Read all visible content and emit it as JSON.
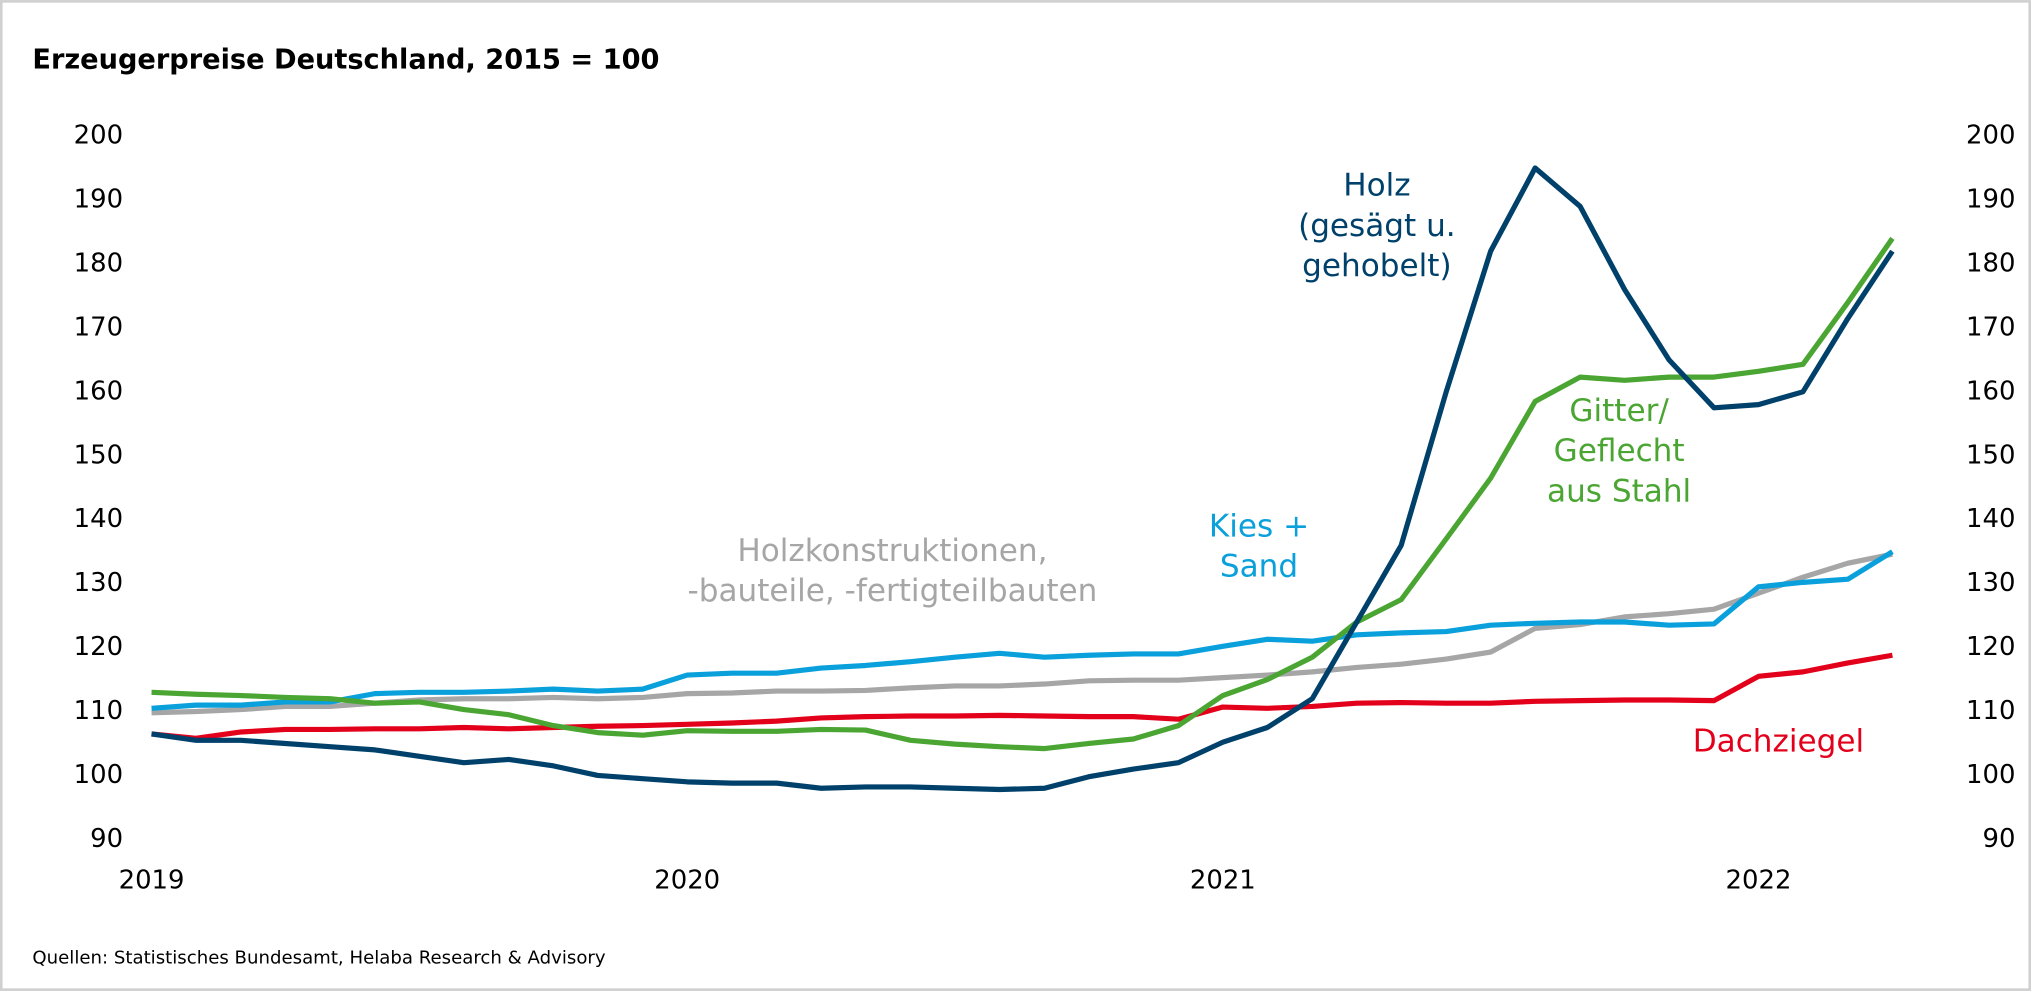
{
  "chart_data": {
    "type": "line",
    "title": "Erzeugerpreise Deutschland, 2015 = 100",
    "source": "Quellen: Statistisches Bundesamt, Helaba Research & Advisory",
    "x": [
      2019,
      2019.083,
      2019.167,
      2019.25,
      2019.333,
      2019.417,
      2019.5,
      2019.583,
      2019.667,
      2019.75,
      2019.833,
      2019.917,
      2020,
      2020.083,
      2020.167,
      2020.25,
      2020.333,
      2020.417,
      2020.5,
      2020.583,
      2020.667,
      2020.75,
      2020.833,
      2020.917,
      2021,
      2021.083,
      2021.167,
      2021.25,
      2021.333,
      2021.417,
      2021.5,
      2021.583,
      2021.667,
      2021.75,
      2021.833,
      2021.917,
      2022,
      2022.083,
      2022.167,
      2022.25
    ],
    "xlim": [
      2019,
      2022.25
    ],
    "xticks": [
      2019,
      2020,
      2021,
      2022
    ],
    "ylim": [
      90,
      200
    ],
    "yticks": [
      90,
      100,
      110,
      120,
      130,
      140,
      150,
      160,
      170,
      180,
      190,
      200
    ],
    "y2lim": [
      90,
      200
    ],
    "y2ticks": [
      90,
      100,
      110,
      120,
      130,
      140,
      150,
      160,
      170,
      180,
      190,
      200
    ],
    "grid": false,
    "series": [
      {
        "name": "Holzkonstruktionen,\n-bauteile, -fertigteilbauten",
        "color": "#a6a6a6",
        "values": [
          109.8,
          110,
          110.3,
          110.8,
          110.8,
          111.3,
          111.8,
          112,
          112,
          112.2,
          112,
          112.2,
          112.8,
          112.9,
          113.2,
          113.2,
          113.3,
          113.7,
          114,
          114,
          114.3,
          114.8,
          114.9,
          114.9,
          115.3,
          115.7,
          116.2,
          116.9,
          117.4,
          118.2,
          119.3,
          123,
          123.6,
          124.8,
          125.3,
          126,
          128.5,
          131,
          133.2,
          134.6
        ]
      },
      {
        "name": "Dachziegel",
        "color": "#e3001b",
        "values": [
          106.5,
          105.8,
          106.8,
          107.2,
          107.2,
          107.3,
          107.3,
          107.5,
          107.3,
          107.5,
          107.7,
          107.8,
          108,
          108.2,
          108.5,
          109,
          109.2,
          109.3,
          109.3,
          109.4,
          109.3,
          109.2,
          109.2,
          108.8,
          110.7,
          110.5,
          110.8,
          111.3,
          111.4,
          111.3,
          111.3,
          111.6,
          111.7,
          111.8,
          111.8,
          111.7,
          115.5,
          116.2,
          117.6,
          118.8
        ]
      },
      {
        "name": "Kies +\nSand",
        "color": "#0aa0dc",
        "values": [
          110.5,
          111,
          111,
          111.5,
          111.5,
          112.8,
          113,
          113,
          113.2,
          113.5,
          113.2,
          113.5,
          115.7,
          116,
          116,
          116.8,
          117.2,
          117.8,
          118.5,
          119.1,
          118.5,
          118.8,
          119,
          119,
          120.2,
          121.3,
          121,
          122,
          122.3,
          122.5,
          123.5,
          123.8,
          124,
          124,
          123.5,
          123.7,
          129.5,
          130.2,
          130.7,
          135
        ]
      },
      {
        "name": "Gitter/\nGeflecht\naus Stahl",
        "color": "#4aa532",
        "values": [
          113,
          112.7,
          112.5,
          112.2,
          112,
          111.3,
          111.5,
          110.3,
          109.5,
          107.8,
          106.7,
          106.3,
          107,
          106.9,
          106.9,
          107.2,
          107.1,
          105.5,
          104.9,
          104.5,
          104.2,
          105,
          105.7,
          107.8,
          112.5,
          115,
          118.5,
          124,
          127.5,
          137,
          146.5,
          158.5,
          162.3,
          161.8,
          162.3,
          162.3,
          163.2,
          164.3,
          174,
          184
        ]
      },
      {
        "name": "Holz\n(gesägt u.\ngehobelt)",
        "color": "#00416b",
        "values": [
          106.5,
          105.5,
          105.5,
          105,
          104.5,
          104,
          103,
          102,
          102.5,
          101.5,
          100,
          99.5,
          99,
          98.8,
          98.8,
          98,
          98.2,
          98.2,
          98,
          97.8,
          98,
          99.8,
          101,
          102,
          105.2,
          107.5,
          112,
          124,
          136,
          160,
          182,
          195,
          189,
          176,
          165,
          157.5,
          158,
          160,
          171.5,
          182
        ]
      }
    ]
  }
}
